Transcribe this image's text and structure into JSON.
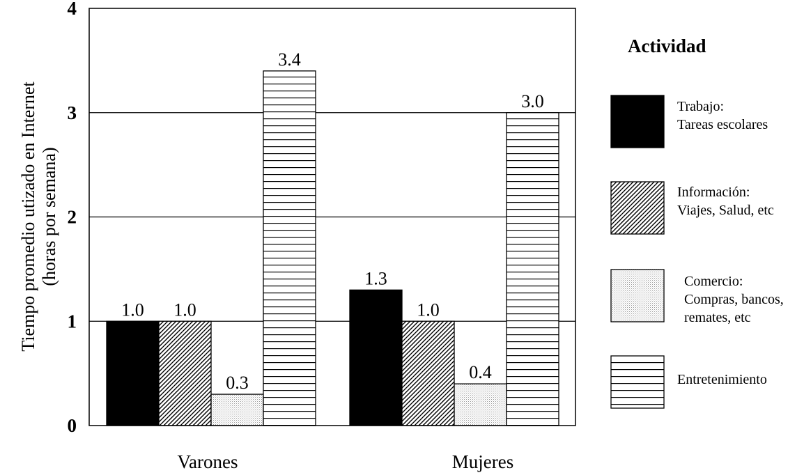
{
  "chart_data": {
    "type": "bar",
    "categories": [
      "Varones",
      "Mujeres"
    ],
    "series": [
      {
        "name": "Trabajo: Tareas escolares",
        "values": [
          1.0,
          1.3
        ],
        "labels": [
          "1.0",
          "1.3"
        ],
        "pattern": "solid",
        "legend_lines": [
          "Trabajo:",
          "Tareas escolares"
        ]
      },
      {
        "name": "Información: Viajes, Salud, etc",
        "values": [
          1.0,
          1.0
        ],
        "labels": [
          "1.0",
          "1.0"
        ],
        "pattern": "diagonal",
        "legend_lines": [
          "Información:",
          "Viajes, Salud, etc"
        ]
      },
      {
        "name": "Comercio: Compras, bancos, remates, etc",
        "values": [
          0.3,
          0.4
        ],
        "labels": [
          "0.3",
          "0.4"
        ],
        "pattern": "dots",
        "legend_lines": [
          "Comercio:",
          "Compras, bancos,",
          "remates, etc"
        ]
      },
      {
        "name": "Entretenimiento",
        "values": [
          3.4,
          3.0
        ],
        "labels": [
          "3.4",
          "3.0"
        ],
        "pattern": "horizontal",
        "legend_lines": [
          "Entretenimiento"
        ]
      }
    ],
    "ylabel_lines": [
      "Tiempo promedio utizado en Internet",
      "(horas por semana)"
    ],
    "yticks": [
      "0",
      "1",
      "2",
      "3",
      "4"
    ],
    "ylim": [
      0,
      4
    ],
    "grid": "horizontal",
    "legend_title": "Actividad",
    "legend_position": "right",
    "colors": {
      "ink": "#000000",
      "fill": "#ffffff",
      "dots": "#9a9a9a"
    }
  }
}
